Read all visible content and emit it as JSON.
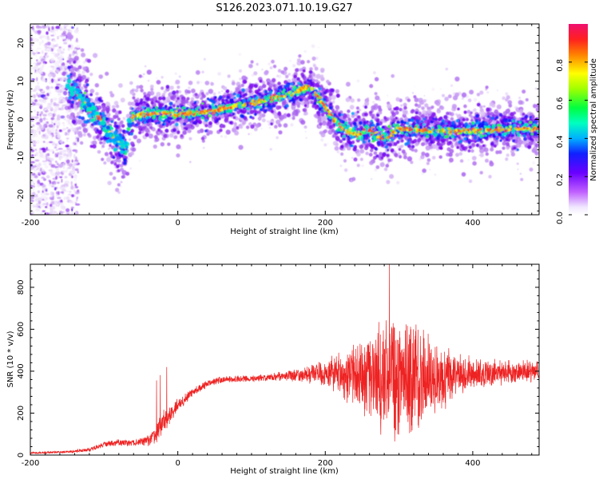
{
  "title": "S126.2023.071.10.19.G27",
  "colors": {
    "snr_line": "#ee2222",
    "axis": "#000000",
    "background": "#ffffff"
  },
  "chart_data": [
    {
      "type": "heatmap",
      "xlabel": "Height of straight line (km)",
      "ylabel": "Frequency (Hz)",
      "xlim": [
        -200,
        490
      ],
      "ylim": [
        -25,
        25
      ],
      "xticks": [
        -200,
        0,
        200,
        400
      ],
      "yticks": [
        -20,
        -10,
        0,
        10,
        20
      ],
      "grid": false,
      "colorbar": {
        "label": "Normalized spectral amplitude",
        "range": [
          0,
          1
        ],
        "ticks": [
          0.0,
          0.2,
          0.4,
          0.6,
          0.8
        ],
        "colormap": [
          "#ffffff",
          "#e8d8f8",
          "#b070f0",
          "#7a00f0",
          "#0a10ff",
          "#00c8ff",
          "#00ff90",
          "#60ff00",
          "#ffff00",
          "#ff8000",
          "#ff1060"
        ]
      },
      "ridge": {
        "x": [
          -150,
          -130,
          -110,
          -90,
          -80,
          -70,
          -65,
          -60,
          -40,
          0,
          40,
          80,
          120,
          150,
          170,
          180,
          200,
          220,
          240,
          260,
          280,
          300,
          350,
          400,
          450,
          490
        ],
        "y": [
          9,
          5,
          1,
          -4,
          -6,
          -8,
          -1,
          1,
          1.5,
          1.5,
          2,
          3.5,
          5,
          6.5,
          8,
          8.5,
          3,
          -2,
          -4,
          -3,
          -5,
          -2.5,
          -3,
          -3,
          -2.5,
          -2.5
        ]
      }
    },
    {
      "type": "line",
      "xlabel": "Height of straight line (km)",
      "ylabel": "SNR (10 * v/v)",
      "xlim": [
        -200,
        490
      ],
      "ylim": [
        0,
        910
      ],
      "xticks": [
        -200,
        0,
        200,
        400
      ],
      "yticks": [
        0,
        200,
        400,
        600,
        800
      ],
      "grid": false,
      "series": [
        {
          "envelope_x": [
            -200,
            -150,
            -120,
            -100,
            -80,
            -60,
            -40,
            -30,
            -20,
            -10,
            0,
            10,
            20,
            40,
            60,
            100,
            140,
            180,
            200,
            220,
            250,
            270,
            290,
            310,
            330,
            350,
            380,
            420,
            460,
            490
          ],
          "envelope_mean": [
            10,
            15,
            25,
            50,
            60,
            60,
            70,
            100,
            150,
            190,
            240,
            270,
            300,
            340,
            360,
            365,
            375,
            385,
            390,
            385,
            380,
            380,
            375,
            375,
            370,
            370,
            385,
            390,
            395,
            400
          ],
          "envelope_amp": [
            5,
            5,
            8,
            12,
            15,
            15,
            25,
            45,
            55,
            40,
            30,
            25,
            20,
            15,
            15,
            15,
            20,
            40,
            60,
            90,
            170,
            230,
            270,
            260,
            230,
            180,
            90,
            60,
            50,
            50
          ],
          "peak": {
            "x": 287,
            "y": 910
          }
        }
      ]
    }
  ]
}
